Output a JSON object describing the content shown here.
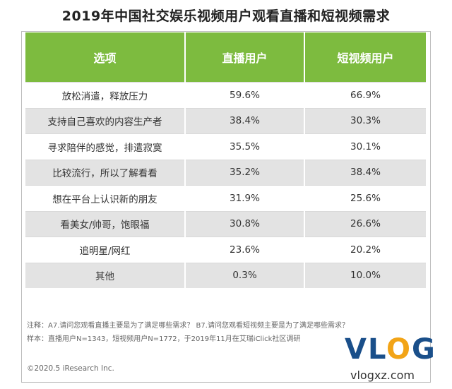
{
  "title": "2019年中国社交娱乐视频用户观看直播和短视频需求",
  "chart_data": {
    "type": "table",
    "columns": [
      "选项",
      "直播用户",
      "短视频用户"
    ],
    "rows": [
      {
        "label": "放松消遣，释放压力",
        "live": "59.6%",
        "short": "66.9%"
      },
      {
        "label": "支持自己喜欢的内容生产者",
        "live": "38.4%",
        "short": "30.3%"
      },
      {
        "label": "寻求陪伴的感觉，排遣寂寞",
        "live": "35.5%",
        "short": "30.1%"
      },
      {
        "label": "比较流行，所以了解看看",
        "live": "35.2%",
        "short": "38.4%"
      },
      {
        "label": "想在平台上认识新的朋友",
        "live": "31.9%",
        "short": "25.6%"
      },
      {
        "label": "看美女/帅哥，饱眼福",
        "live": "30.8%",
        "short": "26.6%"
      },
      {
        "label": "追明星/网红",
        "live": "23.6%",
        "short": "20.2%"
      },
      {
        "label": "其他",
        "live": "0.3%",
        "short": "10.0%"
      }
    ],
    "header_color": "#7dbb3f",
    "stripe_color": "#e3e3e3"
  },
  "notes": {
    "line1": "注释：A7.请问您观看直播主要是为了满足哪些需求？ B7.请问您观看短视频主要是为了满足哪些需求？",
    "line2": "样本：直播用户N=1343，短视频用户N=1772，于2019年11月在艾瑞iClick社区调研"
  },
  "copyright": "©2020.5 iResearch Inc.",
  "watermark": {
    "logo_v": "V",
    "logo_l": "L",
    "logo_o": "O",
    "logo_g": "G",
    "url": "vlogxz.com"
  }
}
